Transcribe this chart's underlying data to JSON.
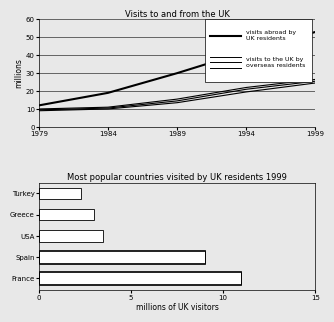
{
  "line_chart": {
    "title": "Visits to and from the UK",
    "years": [
      1979,
      1984,
      1989,
      1994,
      1999
    ],
    "visits_abroad": [
      12,
      19,
      30,
      42,
      53
    ],
    "visits_to_uk_lines": [
      [
        9.0,
        10.0,
        13.5,
        19.5,
        24.5
      ],
      [
        9.5,
        10.5,
        14.5,
        21.0,
        25.5
      ],
      [
        10.0,
        11.0,
        15.5,
        22.0,
        26.5
      ]
    ],
    "ylabel": "millions",
    "ylim": [
      0,
      60
    ],
    "yticks": [
      0,
      10,
      20,
      30,
      40,
      50,
      60
    ],
    "xticks": [
      1979,
      1984,
      1989,
      1994,
      1999
    ],
    "legend_abroad": "visits abroad by\nUK residents",
    "legend_to_uk": "visits to the UK by\noverseas residents",
    "bg_color": "#e8e8e8"
  },
  "bar_chart": {
    "title": "Most popular countries visited by UK residents 1999",
    "countries": [
      "France",
      "Spain",
      "USA",
      "Greece",
      "Turkey"
    ],
    "values": [
      11.0,
      9.0,
      3.5,
      3.0,
      2.3
    ],
    "xlabel": "millions of UK visitors",
    "xlim": [
      0,
      15
    ],
    "xticks": [
      0,
      5,
      10,
      15
    ],
    "bg_color": "#e8e8e8"
  },
  "fig_bg": "#e8e8e8"
}
